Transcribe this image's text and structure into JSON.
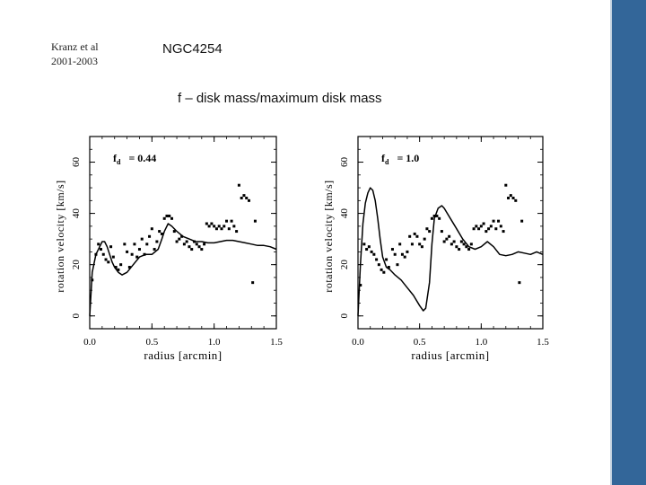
{
  "slide": {
    "reference_line1": "Kranz et al",
    "reference_line2": "2001-2003",
    "title": "NGC4254",
    "subtitle": "f – disk mass/maximum disk mass",
    "sidebar_color": "#336699"
  },
  "chart_data": [
    {
      "type": "scatter",
      "annotation": "f_d = 0.44",
      "annotation_main": "f",
      "annotation_sub": "d",
      "annotation_value": "= 0.44",
      "xlabel": "radius [arcmin]",
      "ylabel": "rotation velocity [km/s]",
      "xlim": [
        0,
        1.5
      ],
      "ylim": [
        -5,
        70
      ],
      "xticks": [
        0.0,
        0.5,
        1.0,
        1.5
      ],
      "xtick_labels": [
        "0.0",
        "0.5",
        "1.0",
        "1.5"
      ],
      "yticks": [
        0,
        20,
        40,
        60
      ],
      "ytick_labels": [
        "0",
        "20",
        "40",
        "60"
      ],
      "grid": false,
      "series": [
        {
          "kind": "points",
          "x": [
            0.02,
            0.05,
            0.07,
            0.09,
            0.11,
            0.13,
            0.15,
            0.17,
            0.19,
            0.21,
            0.23,
            0.25,
            0.28,
            0.3,
            0.32,
            0.34,
            0.36,
            0.38,
            0.4,
            0.42,
            0.44,
            0.46,
            0.48,
            0.5,
            0.52,
            0.54,
            0.56,
            0.58,
            0.6,
            0.62,
            0.64,
            0.66,
            0.68,
            0.7,
            0.72,
            0.74,
            0.76,
            0.78,
            0.8,
            0.82,
            0.84,
            0.86,
            0.88,
            0.9,
            0.92,
            0.94,
            0.96,
            0.98,
            1.0,
            1.02,
            1.04,
            1.06,
            1.08,
            1.1,
            1.12,
            1.14,
            1.16,
            1.18,
            1.2,
            1.22,
            1.24,
            1.26,
            1.28,
            1.31,
            1.33
          ],
          "y": [
            14,
            24,
            28,
            26,
            24,
            22,
            21,
            27,
            23,
            19,
            18,
            20,
            28,
            25,
            19,
            24,
            28,
            23,
            26,
            30,
            24,
            28,
            31,
            34,
            26,
            29,
            33,
            32,
            38,
            39,
            39,
            38,
            33,
            29,
            30,
            31,
            28,
            29,
            27,
            26,
            29,
            28,
            27,
            26,
            28,
            36,
            35,
            36,
            35,
            34,
            35,
            34,
            35,
            37,
            34,
            37,
            35,
            33,
            51,
            46,
            47,
            46,
            45,
            13,
            37
          ]
        },
        {
          "kind": "line",
          "x": [
            0.0,
            0.02,
            0.05,
            0.08,
            0.1,
            0.12,
            0.14,
            0.16,
            0.18,
            0.2,
            0.23,
            0.26,
            0.3,
            0.35,
            0.4,
            0.45,
            0.5,
            0.55,
            0.58,
            0.6,
            0.63,
            0.66,
            0.7,
            0.75,
            0.8,
            0.85,
            0.9,
            0.95,
            1.0,
            1.05,
            1.1,
            1.15,
            1.2,
            1.25,
            1.3,
            1.35,
            1.4,
            1.45,
            1.5
          ],
          "y": [
            0,
            17,
            24,
            27,
            29,
            29,
            27,
            24,
            21,
            19,
            17,
            16,
            17,
            20,
            23,
            24,
            24,
            26,
            30,
            33,
            36,
            35,
            33,
            31,
            30,
            29,
            29,
            28.5,
            28.5,
            29,
            29.5,
            29.5,
            29,
            28.5,
            28,
            27.5,
            27.5,
            27,
            26
          ]
        }
      ]
    },
    {
      "type": "scatter",
      "annotation": "f_d = 1.0",
      "annotation_main": "f",
      "annotation_sub": "d",
      "annotation_value": "= 1.0",
      "xlabel": "radius [arcmin]",
      "ylabel": "rotation velocity [km/s]",
      "xlim": [
        0,
        1.5
      ],
      "ylim": [
        -5,
        70
      ],
      "xticks": [
        0.0,
        0.5,
        1.0,
        1.5
      ],
      "xtick_labels": [
        "0.0",
        "0.5",
        "1.0",
        "1.5"
      ],
      "yticks": [
        0,
        20,
        40,
        60
      ],
      "ytick_labels": [
        "0",
        "20",
        "40",
        "60"
      ],
      "grid": false,
      "series": [
        {
          "kind": "points",
          "x": [
            0.02,
            0.05,
            0.07,
            0.09,
            0.11,
            0.13,
            0.15,
            0.17,
            0.19,
            0.21,
            0.23,
            0.25,
            0.28,
            0.3,
            0.32,
            0.34,
            0.36,
            0.38,
            0.4,
            0.42,
            0.44,
            0.46,
            0.48,
            0.5,
            0.52,
            0.54,
            0.56,
            0.58,
            0.6,
            0.62,
            0.64,
            0.66,
            0.68,
            0.7,
            0.72,
            0.74,
            0.76,
            0.78,
            0.8,
            0.82,
            0.84,
            0.86,
            0.88,
            0.9,
            0.92,
            0.94,
            0.96,
            0.98,
            1.0,
            1.02,
            1.04,
            1.06,
            1.08,
            1.1,
            1.12,
            1.14,
            1.16,
            1.18,
            1.2,
            1.22,
            1.24,
            1.26,
            1.28,
            1.31,
            1.33
          ],
          "y": [
            12,
            28,
            26,
            27,
            25,
            24,
            22,
            20,
            18,
            17,
            22,
            19,
            26,
            24,
            20,
            28,
            24,
            23,
            25,
            31,
            28,
            32,
            31,
            28,
            27,
            30,
            34,
            33,
            38,
            39,
            39,
            38,
            33,
            29,
            30,
            31,
            28,
            29,
            27,
            26,
            29,
            28,
            27,
            26,
            28,
            34,
            35,
            34,
            35,
            36,
            33,
            34,
            35,
            37,
            34,
            37,
            35,
            33,
            51,
            46,
            47,
            46,
            45,
            13,
            37
          ]
        },
        {
          "kind": "line",
          "x": [
            0.0,
            0.02,
            0.04,
            0.06,
            0.08,
            0.1,
            0.12,
            0.14,
            0.16,
            0.18,
            0.2,
            0.23,
            0.26,
            0.3,
            0.35,
            0.4,
            0.45,
            0.5,
            0.53,
            0.55,
            0.58,
            0.6,
            0.62,
            0.65,
            0.68,
            0.7,
            0.75,
            0.8,
            0.85,
            0.9,
            0.95,
            1.0,
            1.05,
            1.1,
            1.15,
            1.2,
            1.25,
            1.3,
            1.35,
            1.4,
            1.45,
            1.5
          ],
          "y": [
            0,
            20,
            36,
            44,
            48,
            50,
            49,
            45,
            38,
            30,
            23,
            19,
            18,
            16,
            14,
            11,
            8,
            4,
            2,
            3,
            13,
            28,
            38,
            42,
            43,
            42,
            38,
            34,
            30,
            27,
            26,
            27,
            29,
            27,
            24,
            23.5,
            24,
            25,
            24.5,
            24,
            25,
            24
          ]
        }
      ]
    }
  ]
}
